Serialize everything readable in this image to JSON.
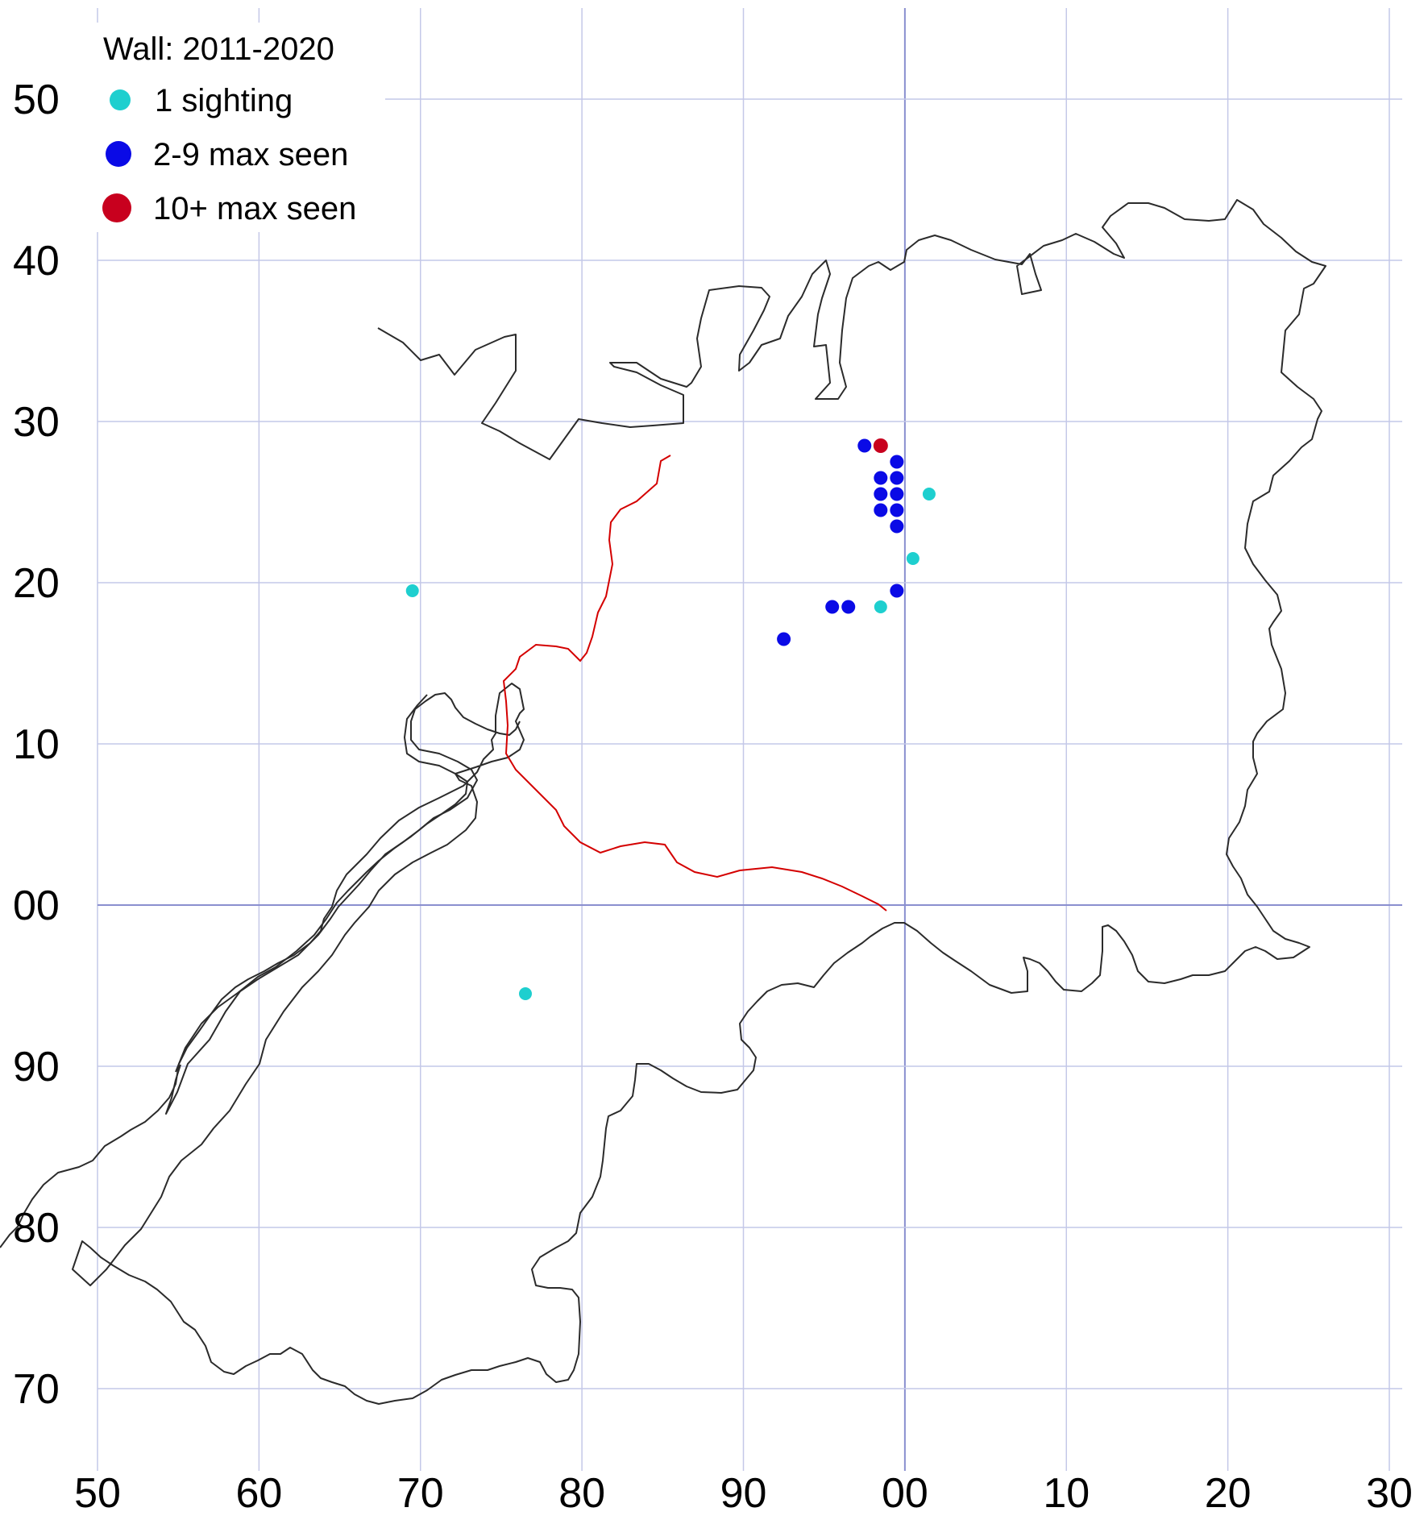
{
  "map": {
    "title": "Wall:  2011-2020",
    "colors": {
      "grid": "#c4c8e8",
      "grid_major": "#8a8fcf",
      "outline": "#2b2b2b",
      "boundary": "#d40000"
    }
  },
  "legend": {
    "items": [
      {
        "label": "1 sighting",
        "color": "#1ecfcf"
      },
      {
        "label": "2-9 max seen",
        "color": "#0a0ae6"
      },
      {
        "label": "10+ max seen",
        "color": "#c8001e"
      }
    ]
  },
  "axes": {
    "x_ticks": [
      "50",
      "60",
      "70",
      "80",
      "90",
      "00",
      "10",
      "20",
      "30"
    ],
    "y_ticks": [
      "50",
      "40",
      "30",
      "20",
      "10",
      "00",
      "90",
      "80",
      "70"
    ]
  },
  "chart_data": {
    "type": "scatter",
    "title": "Wall:  2011-2020",
    "xlabel": "",
    "ylabel": "",
    "grid": true,
    "legend_position": "top-left",
    "x_range": [
      50,
      130
    ],
    "y_range": [
      70,
      150
    ],
    "series": [
      {
        "name": "1 sighting",
        "color": "#1ecfcf",
        "points": [
          [
            69.5,
            119.5
          ],
          [
            76.5,
            94.5
          ],
          [
            98.5,
            118.5
          ],
          [
            100.5,
            121.5
          ],
          [
            101.5,
            125.5
          ]
        ]
      },
      {
        "name": "2-9 max seen",
        "color": "#0a0ae6",
        "points": [
          [
            97.5,
            128.5
          ],
          [
            99.5,
            127.5
          ],
          [
            98.5,
            126.5
          ],
          [
            99.5,
            126.5
          ],
          [
            98.5,
            125.5
          ],
          [
            99.5,
            125.5
          ],
          [
            98.5,
            124.5
          ],
          [
            99.5,
            124.5
          ],
          [
            99.5,
            123.5
          ],
          [
            99.5,
            119.5
          ],
          [
            95.5,
            118.5
          ],
          [
            96.5,
            118.5
          ],
          [
            92.5,
            116.5
          ]
        ]
      },
      {
        "name": "10+ max seen",
        "color": "#c8001e",
        "points": [
          [
            98.5,
            128.5
          ]
        ]
      }
    ]
  }
}
